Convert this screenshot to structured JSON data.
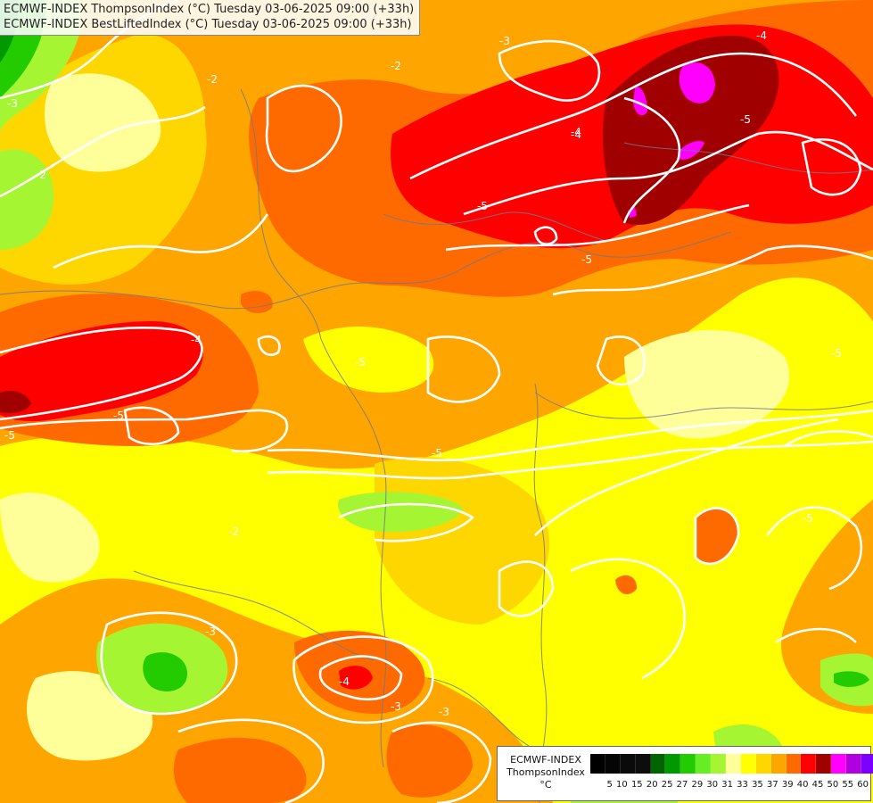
{
  "header": {
    "line1": "ECMWF-INDEX ThompsonIndex (°C) Tuesday 03-06-2025 09:00 (+33h)",
    "line2": "ECMWF-INDEX BestLiftedIndex (°C) Tuesday 03-06-2025 09:00 (+33h)"
  },
  "legend": {
    "model": "ECMWF-INDEX",
    "param": "ThompsonIndex",
    "unit": "°C",
    "steps": [
      {
        "label": "5",
        "color": "#000000"
      },
      {
        "label": "10",
        "color": "#050505"
      },
      {
        "label": "15",
        "color": "#0a0a0a"
      },
      {
        "label": "20",
        "color": "#0d0d0d"
      },
      {
        "label": "25",
        "color": "#006400"
      },
      {
        "label": "27",
        "color": "#009a00"
      },
      {
        "label": "29",
        "color": "#22cc00"
      },
      {
        "label": "30",
        "color": "#66ee22"
      },
      {
        "label": "31",
        "color": "#a6f533"
      },
      {
        "label": "33",
        "color": "#ffff99"
      },
      {
        "label": "35",
        "color": "#ffff00"
      },
      {
        "label": "37",
        "color": "#ffd700"
      },
      {
        "label": "39",
        "color": "#ffa500"
      },
      {
        "label": "40",
        "color": "#ff6a00"
      },
      {
        "label": "45",
        "color": "#ff0000"
      },
      {
        "label": "50",
        "color": "#a00000"
      },
      {
        "label": "55",
        "color": "#ff00ff"
      },
      {
        "label": "60",
        "color": "#b000e0"
      },
      {
        "label": "",
        "color": "#7b00ff"
      },
      {
        "label": "",
        "color": "#0000ff"
      }
    ]
  },
  "contour_labels": [
    "-3",
    "-2",
    "-4",
    "-5",
    "-5",
    "-4",
    "-5",
    "-5",
    "-2",
    "-3",
    "-2",
    "-5",
    "-5",
    "-2",
    "-4",
    "-3",
    "-3",
    "-5",
    "-5",
    "-4",
    "-4",
    "-3",
    "-5"
  ]
}
